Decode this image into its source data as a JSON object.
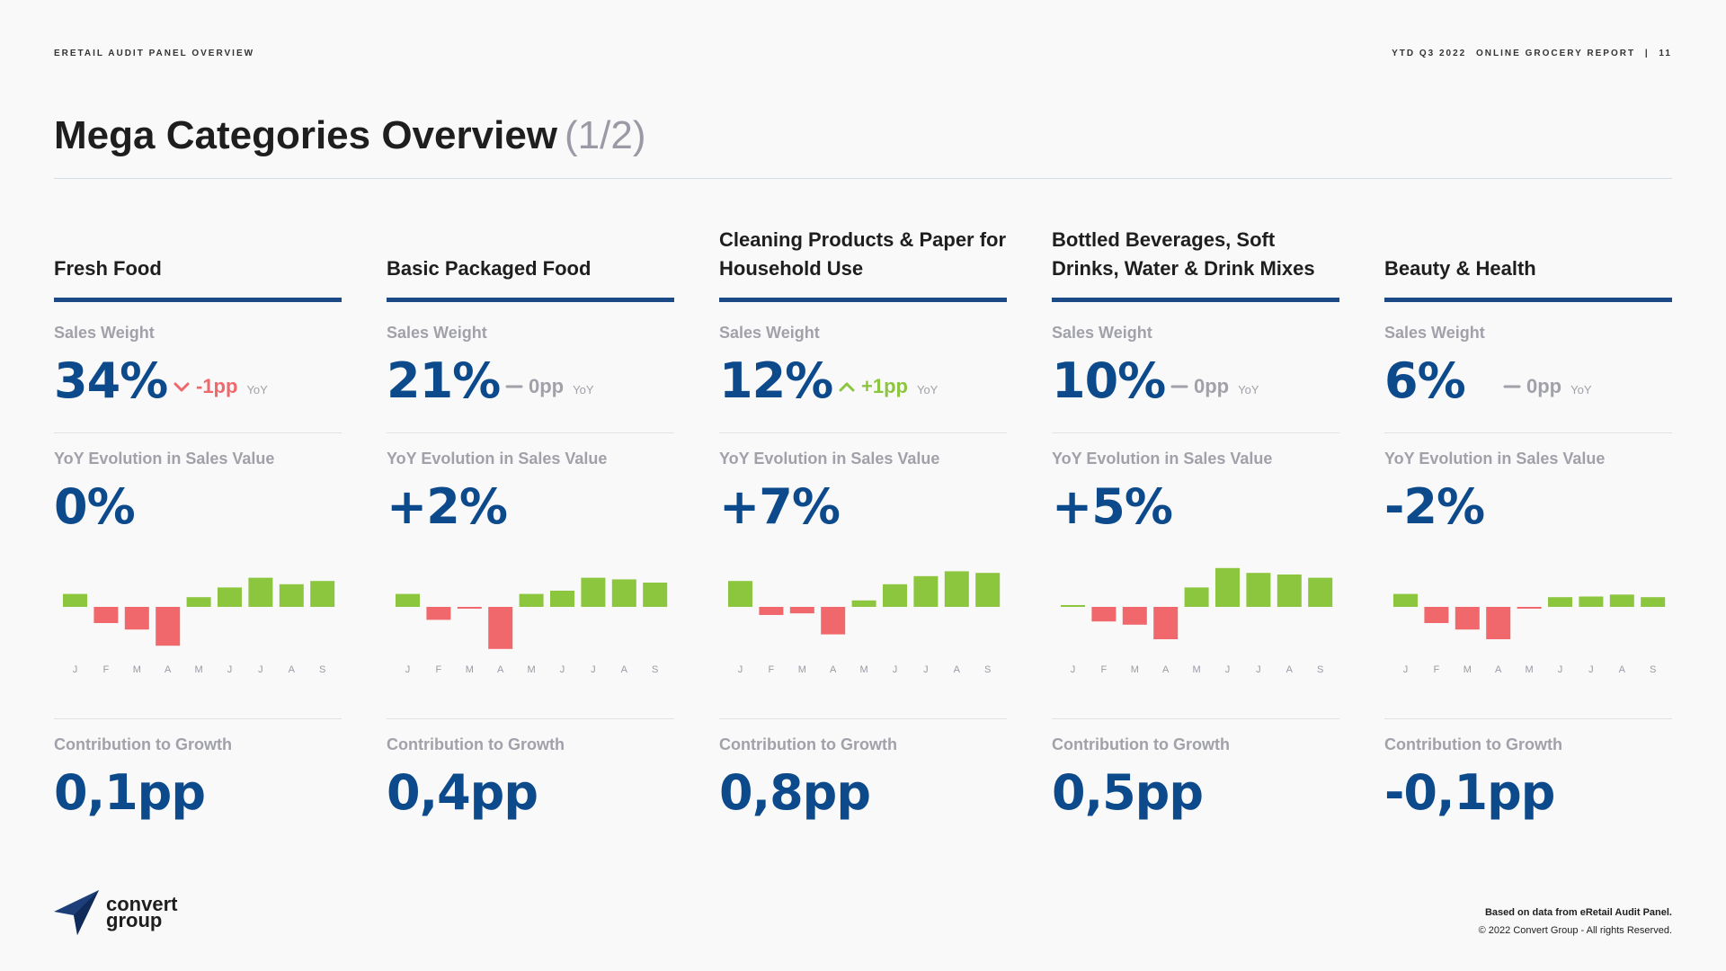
{
  "header": {
    "section": "ERETAIL AUDIT PANEL OVERVIEW",
    "period": "YTD Q3 2022",
    "report": "ONLINE GROCERY REPORT",
    "divider": "|",
    "page": "11"
  },
  "title": {
    "main": "Mega Categories Overview",
    "sub": "(1/2)"
  },
  "labels": {
    "sales_weight": "Sales Weight",
    "yoy_evolution": "YoY Evolution in Sales Value",
    "contribution": "Contribution to Growth",
    "yoy": "YoY"
  },
  "colors": {
    "accent": "#0d4a8c",
    "rule": "#1c4a86",
    "positive": "#8cc63f",
    "negative": "#f0686c",
    "neutral": "#a1a1a9"
  },
  "categories": [
    {
      "name": "Fresh Food",
      "sales_weight": "34%",
      "change": "-1pp",
      "trend": "down",
      "yoy_evolution": "0%",
      "contribution": "0,1pp"
    },
    {
      "name": "Basic Packaged Food",
      "sales_weight": "21%",
      "change": "0pp",
      "trend": "flat",
      "yoy_evolution": "+2%",
      "contribution": "0,4pp"
    },
    {
      "name": "Cleaning Products & Paper for Household Use",
      "sales_weight": "12%",
      "change": "+1pp",
      "trend": "up",
      "yoy_evolution": "+7%",
      "contribution": "0,8pp"
    },
    {
      "name": "Bottled Beverages, Soft Drinks, Water & Drink Mixes",
      "sales_weight": "10%",
      "change": "0pp",
      "trend": "flat",
      "yoy_evolution": "+5%",
      "contribution": "0,5pp"
    },
    {
      "name": "Beauty & Health",
      "sales_weight": "6%",
      "change": "0pp",
      "trend": "flat",
      "yoy_evolution": "-2%",
      "contribution": "-0,1pp"
    }
  ],
  "chart_data": [
    {
      "type": "bar",
      "title": "Fresh Food",
      "categories": [
        "J",
        "F",
        "M",
        "A",
        "M",
        "J",
        "J",
        "A",
        "S"
      ],
      "values": [
        4,
        -5,
        -7,
        -12,
        3,
        6,
        9,
        7,
        8
      ]
    },
    {
      "type": "bar",
      "title": "Basic Packaged Food",
      "categories": [
        "J",
        "F",
        "M",
        "A",
        "M",
        "J",
        "J",
        "A",
        "S"
      ],
      "values": [
        4,
        -4,
        -0.5,
        -13,
        4,
        5,
        9,
        8.5,
        7.5
      ]
    },
    {
      "type": "bar",
      "title": "Cleaning Products & Paper for Household Use",
      "categories": [
        "J",
        "F",
        "M",
        "A",
        "M",
        "J",
        "J",
        "A",
        "S"
      ],
      "values": [
        8,
        -2.5,
        -2,
        -8.5,
        2,
        7,
        9.5,
        11,
        10.5
      ]
    },
    {
      "type": "bar",
      "title": "Bottled Beverages, Soft Drinks, Water & Drink Mixes",
      "categories": [
        "J",
        "F",
        "M",
        "A",
        "M",
        "J",
        "J",
        "A",
        "S"
      ],
      "values": [
        0.5,
        -4.5,
        -5.5,
        -10,
        6,
        12,
        10.5,
        10,
        9
      ]
    },
    {
      "type": "bar",
      "title": "Beauty & Health",
      "categories": [
        "J",
        "F",
        "M",
        "A",
        "M",
        "J",
        "J",
        "A",
        "S"
      ],
      "values": [
        4,
        -5,
        -7,
        -10,
        -0.3,
        3,
        3.2,
        3.8,
        3
      ]
    }
  ]
}
